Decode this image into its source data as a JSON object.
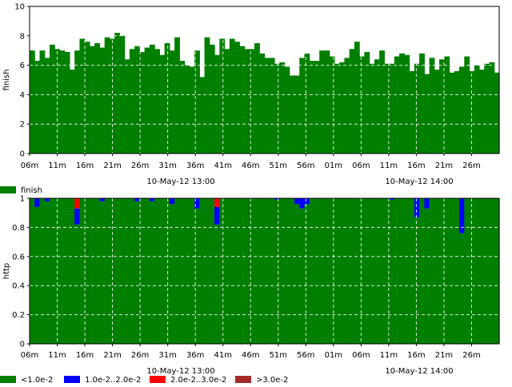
{
  "chart_data": [
    {
      "type": "bar",
      "ylabel": "finish",
      "ylim": [
        0,
        10
      ],
      "yticks": [
        "0",
        "2",
        "4",
        "6",
        "8",
        "10"
      ],
      "grid": true,
      "xtick_labels": [
        "06m",
        "11m",
        "16m",
        "21m",
        "26m",
        "31m",
        "36m",
        "41m",
        "46m",
        "51m",
        "56m",
        "01m",
        "06m",
        "11m",
        "16m",
        "21m",
        "26m"
      ],
      "date_labels": [
        "10-May-12 13:00",
        "10-May-12 14:00"
      ],
      "legend": [
        {
          "label": "finish",
          "color": "#007f00"
        }
      ],
      "series": [
        {
          "name": "finish",
          "color": "#007f00",
          "values": [
            7.0,
            6.3,
            7.0,
            6.5,
            7.4,
            7.1,
            7.0,
            6.9,
            5.7,
            7.0,
            7.8,
            7.6,
            7.3,
            7.5,
            7.2,
            7.9,
            7.8,
            8.2,
            8.0,
            6.4,
            7.1,
            7.3,
            6.9,
            7.2,
            7.4,
            7.1,
            6.7,
            7.5,
            7.0,
            7.9,
            6.3,
            6.0,
            5.9,
            7.0,
            5.2,
            7.9,
            7.4,
            6.7,
            7.8,
            7.1,
            7.8,
            7.6,
            7.3,
            7.1,
            7.1,
            7.5,
            6.8,
            6.5,
            6.5,
            6.1,
            6.2,
            5.9,
            5.3,
            5.3,
            6.5,
            6.8,
            6.3,
            6.3,
            7.0,
            7.0,
            6.6,
            6.1,
            6.2,
            6.5,
            7.1,
            7.6,
            6.6,
            6.9,
            6.1,
            6.4,
            7.0,
            6.1,
            6.1,
            6.6,
            6.8,
            6.7,
            5.6,
            6.1,
            6.8,
            5.4,
            6.5,
            5.7,
            6.4,
            6.6,
            5.5,
            5.6,
            5.9,
            6.6,
            5.6,
            6.0,
            5.7,
            6.1,
            6.2,
            5.5
          ]
        }
      ]
    },
    {
      "type": "bar",
      "ylabel": "http",
      "ylim": [
        0,
        1
      ],
      "yticks": [
        "0",
        "0.2",
        "0.4",
        "0.6",
        "0.8",
        "1"
      ],
      "grid": true,
      "stacked": true,
      "xtick_labels": [
        "06m",
        "11m",
        "16m",
        "21m",
        "26m",
        "31m",
        "36m",
        "41m",
        "46m",
        "51m",
        "56m",
        "01m",
        "06m",
        "11m",
        "16m",
        "21m",
        "26m"
      ],
      "date_labels": [
        "10-May-12 13:00",
        "10-May-12 14:00"
      ],
      "legend": [
        {
          "label": "<1.0e-2",
          "color": "#007f00"
        },
        {
          "label": "1.0e-2..2.0e-2",
          "color": "#0000ff"
        },
        {
          "label": "2.0e-2..3.0e-2",
          "color": "#ff0000"
        },
        {
          "label": ">3.0e-2",
          "color": "#a52a2a"
        }
      ],
      "series": [
        {
          "name": "<1.0e-2",
          "color": "#007f00",
          "values": [
            1,
            0.94,
            1,
            0.98,
            1,
            1,
            1,
            1,
            1,
            0.82,
            1,
            1,
            1,
            1,
            0.98,
            1,
            1,
            1,
            1,
            1,
            1,
            0.98,
            1,
            1,
            0.98,
            1,
            1,
            1,
            0.96,
            1,
            1,
            1,
            1,
            0.93,
            1,
            1,
            1,
            0.82,
            1,
            1,
            1,
            1,
            1,
            1,
            1,
            1,
            1,
            1,
            1,
            0.99,
            1,
            1,
            1,
            0.96,
            0.93,
            0.96,
            1,
            1,
            1,
            1,
            1,
            1,
            1,
            1,
            1,
            1,
            1,
            1,
            1,
            1,
            1,
            1,
            0.99,
            1,
            1,
            1,
            1,
            0.87,
            1,
            0.93,
            1,
            1,
            1,
            1,
            1,
            1,
            0.76,
            1,
            1,
            1,
            1,
            1,
            1,
            1
          ]
        },
        {
          "name": "1.0e-2..2.0e-2",
          "color": "#0000ff",
          "values": [
            0,
            0.06,
            0,
            0.02,
            0,
            0,
            0,
            0,
            0,
            0.11,
            0,
            0,
            0,
            0,
            0.02,
            0,
            0,
            0,
            0,
            0,
            0,
            0.02,
            0,
            0,
            0.02,
            0,
            0,
            0,
            0.04,
            0,
            0,
            0,
            0,
            0.07,
            0,
            0,
            0,
            0.12,
            0,
            0,
            0,
            0,
            0,
            0,
            0,
            0,
            0,
            0,
            0,
            0.01,
            0,
            0,
            0,
            0.04,
            0.07,
            0.04,
            0,
            0,
            0,
            0,
            0,
            0,
            0,
            0,
            0,
            0,
            0,
            0,
            0,
            0,
            0,
            0,
            0.01,
            0,
            0,
            0,
            0,
            0.13,
            0,
            0.07,
            0,
            0,
            0,
            0,
            0,
            0,
            0.24,
            0,
            0,
            0,
            0,
            0,
            0,
            0
          ]
        },
        {
          "name": "2.0e-2..3.0e-2",
          "color": "#ff0000",
          "values": [
            0,
            0,
            0,
            0,
            0,
            0,
            0,
            0,
            0,
            0.07,
            0,
            0,
            0,
            0,
            0,
            0,
            0,
            0,
            0,
            0,
            0,
            0,
            0,
            0,
            0,
            0,
            0,
            0,
            0,
            0,
            0,
            0,
            0,
            0,
            0,
            0,
            0,
            0.06,
            0,
            0,
            0,
            0,
            0,
            0,
            0,
            0,
            0,
            0,
            0,
            0,
            0,
            0,
            0,
            0,
            0,
            0,
            0,
            0,
            0,
            0,
            0,
            0,
            0,
            0,
            0,
            0,
            0,
            0,
            0,
            0,
            0,
            0,
            0,
            0,
            0,
            0,
            0,
            0,
            0,
            0,
            0,
            0,
            0,
            0,
            0,
            0,
            0,
            0,
            0,
            0,
            0,
            0,
            0,
            0
          ]
        },
        {
          "name": ">3.0e-2",
          "color": "#a52a2a",
          "values": [
            0,
            0,
            0,
            0,
            0,
            0,
            0,
            0,
            0,
            0,
            0,
            0,
            0,
            0,
            0,
            0,
            0,
            0,
            0,
            0,
            0,
            0,
            0,
            0,
            0,
            0,
            0,
            0,
            0,
            0,
            0,
            0,
            0,
            0,
            0,
            0,
            0,
            0,
            0,
            0,
            0,
            0,
            0,
            0,
            0,
            0,
            0,
            0,
            0,
            0,
            0,
            0,
            0,
            0,
            0,
            0,
            0,
            0,
            0,
            0,
            0,
            0,
            0,
            0,
            0,
            0,
            0,
            0,
            0,
            0,
            0,
            0,
            0,
            0,
            0,
            0,
            0,
            0,
            0,
            0,
            0,
            0,
            0,
            0,
            0,
            0,
            0,
            0,
            0,
            0,
            0,
            0,
            0,
            0
          ]
        }
      ]
    }
  ]
}
